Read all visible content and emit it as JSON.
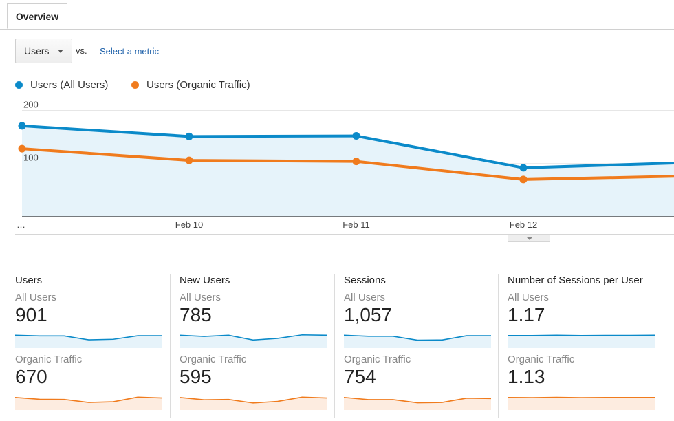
{
  "tab": {
    "label": "Overview"
  },
  "controls": {
    "metric_select": {
      "value": "Users"
    },
    "vs_label": "vs.",
    "select_metric_link": "Select a metric"
  },
  "colors": {
    "all_users": "#0b8ac9",
    "organic": "#f07b1d",
    "area": "#e6f3fa",
    "organic_area": "#fdece0"
  },
  "legend": [
    {
      "label": "Users (All Users)",
      "color": "#0b8ac9"
    },
    {
      "label": "Users (Organic Traffic)",
      "color": "#f07b1d"
    }
  ],
  "chart_data": {
    "type": "line",
    "x": [
      "…",
      "Feb 10",
      "Feb 11",
      "Feb 12",
      ""
    ],
    "x_tick_labels": [
      "…",
      "Feb 10",
      "Feb 11",
      "Feb 12"
    ],
    "y_tick_labels": [
      "200",
      "100"
    ],
    "ylim": [
      0,
      220
    ],
    "series": [
      {
        "name": "Users (All Users)",
        "values": [
          171,
          151,
          152,
          92,
          101
        ]
      },
      {
        "name": "Users (Organic Traffic)",
        "values": [
          128,
          106,
          104,
          70,
          76
        ]
      }
    ],
    "grid": true,
    "legend_position": "top-left"
  },
  "scorecards": [
    {
      "title": "Users",
      "segments": [
        {
          "label": "All Users",
          "value": "901",
          "spark": [
            72,
            68,
            68,
            46,
            49,
            69,
            69
          ]
        },
        {
          "label": "Organic Traffic",
          "value": "670",
          "spark": [
            70,
            60,
            59,
            42,
            46,
            72,
            67
          ]
        }
      ]
    },
    {
      "title": "New Users",
      "segments": [
        {
          "label": "All Users",
          "value": "785",
          "spark": [
            72,
            65,
            72,
            45,
            54,
            74,
            72
          ]
        },
        {
          "label": "Organic Traffic",
          "value": "595",
          "spark": [
            70,
            57,
            59,
            39,
            48,
            72,
            67
          ]
        }
      ]
    },
    {
      "title": "Sessions",
      "segments": [
        {
          "label": "All Users",
          "value": "1,057",
          "spark": [
            72,
            66,
            66,
            44,
            45,
            69,
            69
          ]
        },
        {
          "label": "Organic Traffic",
          "value": "754",
          "spark": [
            70,
            58,
            58,
            40,
            42,
            66,
            64
          ]
        }
      ]
    },
    {
      "title": "Number of Sessions per User",
      "segments": [
        {
          "label": "All Users",
          "value": "1.17",
          "spark": [
            70,
            70,
            72,
            70,
            71,
            71,
            72
          ]
        },
        {
          "label": "Organic Traffic",
          "value": "1.13",
          "spark": [
            70,
            69,
            71,
            69,
            70,
            70,
            70
          ]
        }
      ]
    }
  ]
}
